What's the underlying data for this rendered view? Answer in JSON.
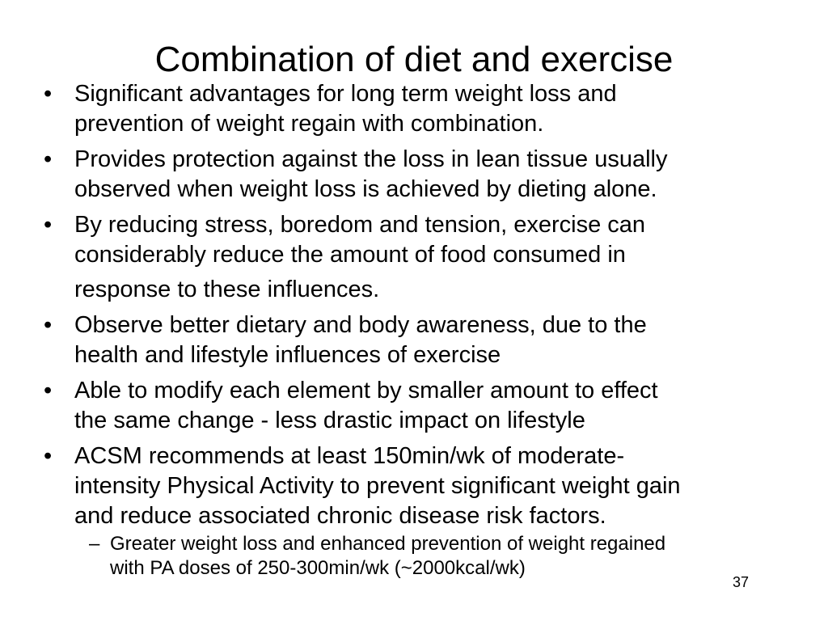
{
  "slide": {
    "title": "Combination of diet and exercise",
    "bullet_marker": "•",
    "sub_marker": "–",
    "bullets": [
      {
        "lines": [
          "Significant advantages for long term weight loss and",
          "prevention of weight regain with combination."
        ]
      },
      {
        "lines": [
          "Provides protection against the loss in lean tissue usually",
          "observed when weight loss is achieved by dieting alone."
        ]
      },
      {
        "lines": [
          "By reducing stress, boredom and tension, exercise can",
          "considerably reduce the amount of food consumed in",
          "response to these influences."
        ]
      },
      {
        "lines": [
          "Observe better dietary and body awareness, due to the",
          "health and lifestyle influences of exercise"
        ]
      },
      {
        "lines": [
          "Able to modify each element by smaller amount to effect",
          "the same change - less drastic impact on lifestyle"
        ]
      },
      {
        "lines": [
          "ACSM recommends at least 150min/wk of moderate-",
          "intensity Physical Activity to prevent significant weight gain",
          "and reduce associated chronic disease risk factors."
        ]
      }
    ],
    "sub_bullet": {
      "lines": [
        "Greater weight loss and enhanced prevention of weight regained",
        "with PA doses of 250-300min/wk (~2000kcal/wk)"
      ]
    },
    "page_number": "37"
  }
}
